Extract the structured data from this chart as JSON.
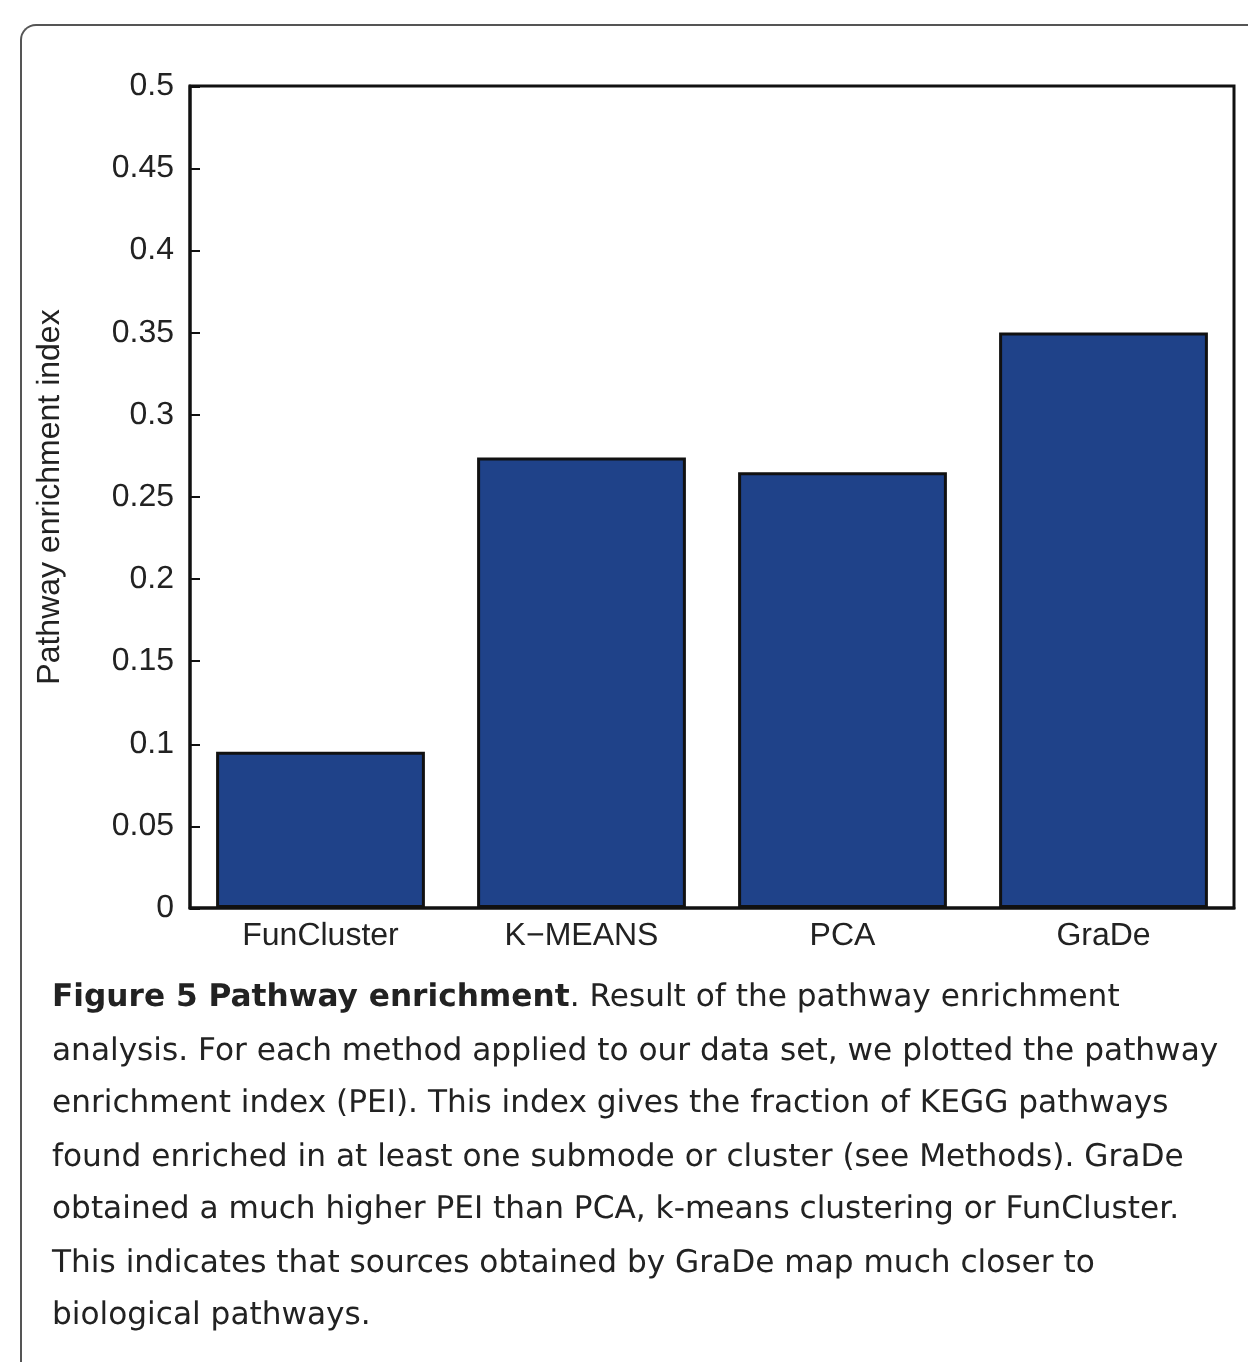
{
  "chart_data": {
    "type": "bar",
    "title": "Figure 5 Pathway enrichment",
    "annotations": [
      ". Result of the pathway enrichment analysis. For each method applied to our data set, we plotted the pathway enrichment index (PEI). This index gives the fraction of KEGG pathways found enriched in at least one submode or cluster (see Methods). GraDe obtained a much higher PEI than PCA, k-means clustering or FunCluster. This indicates that sources obtained by GraDe map much closer to biological pathways."
    ],
    "ylabel": "Pathway enrichment index",
    "categories": [
      "FunCluster",
      "K−MEANS",
      "PCA",
      "GraDe"
    ],
    "values": [
      0.095,
      0.274,
      0.265,
      0.35
    ],
    "color": "#1f4289",
    "ylim": [
      0,
      0.5
    ],
    "yticks": [
      0,
      0.05,
      0.1,
      0.15,
      0.2,
      0.25,
      0.3,
      0.35,
      0.4,
      0.45,
      0.5
    ],
    "grid": false
  }
}
